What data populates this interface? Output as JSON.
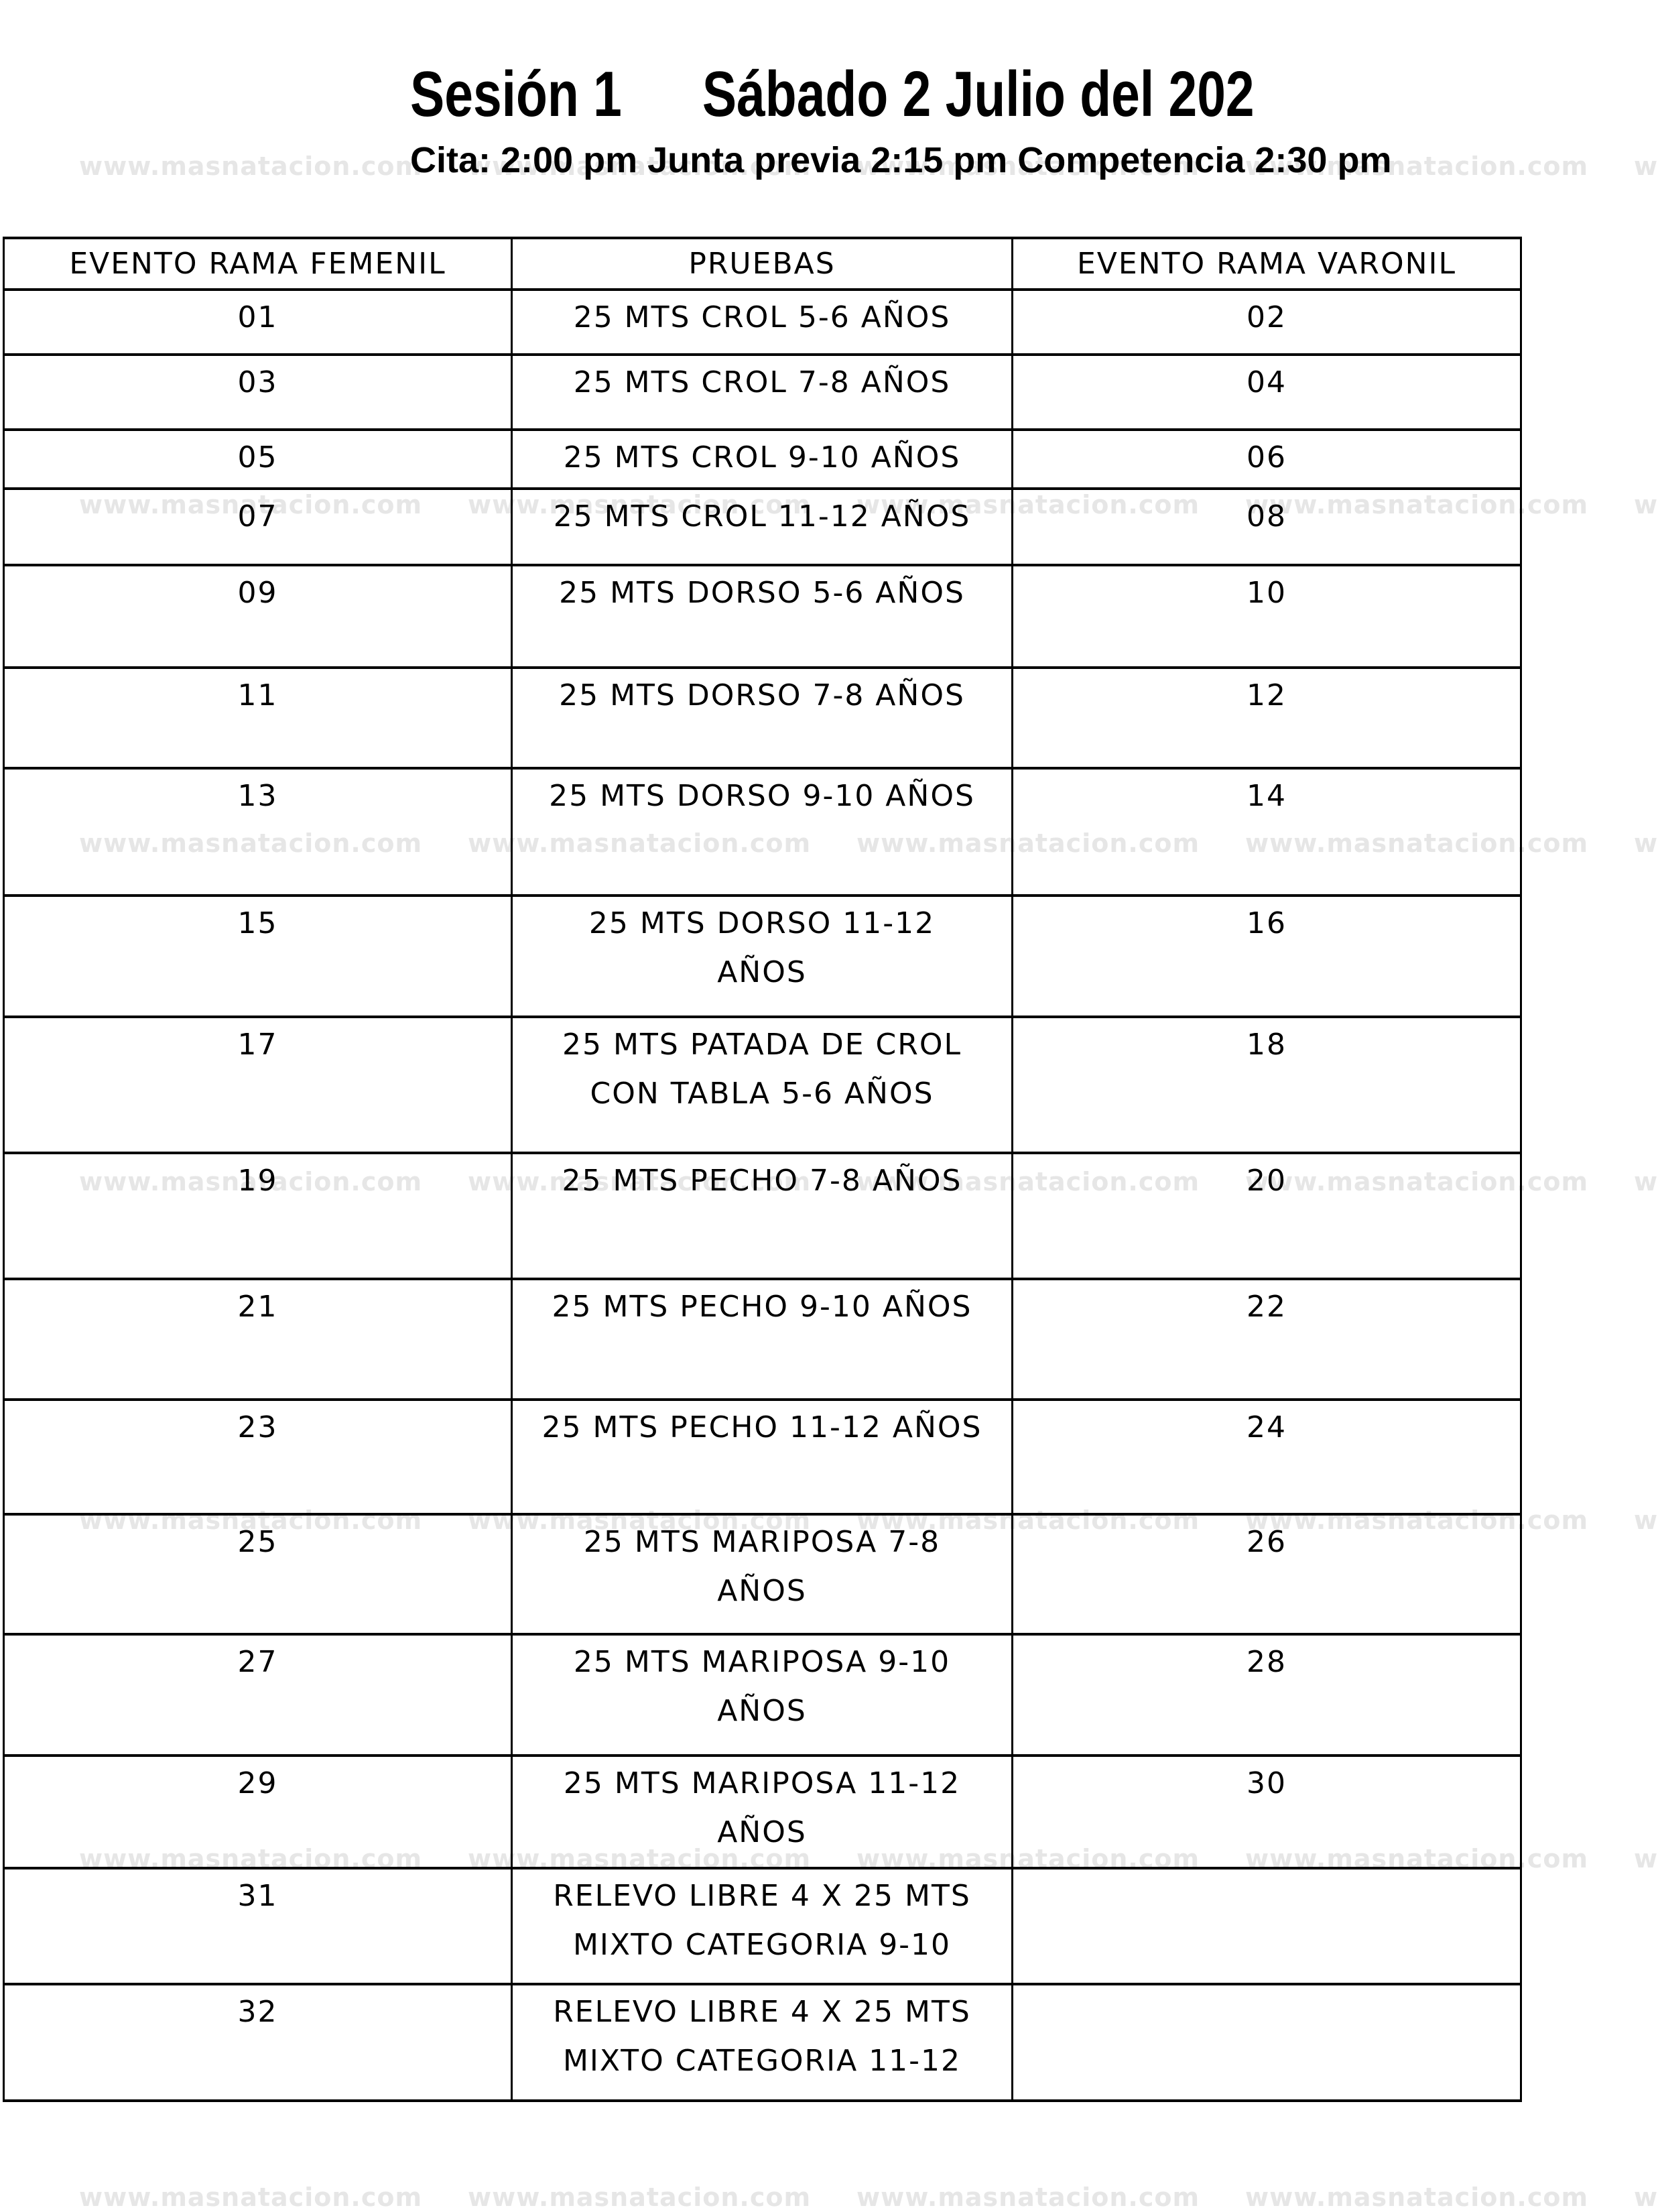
{
  "header": {
    "session": "Sesión 1",
    "date": "Sábado 2 Julio del 202",
    "schedule": "Cita: 2:00 pm Junta previa 2:15 pm Competencia 2:30 pm"
  },
  "watermark": {
    "text": "www.masnatacion.com"
  },
  "table": {
    "columns": [
      "EVENTO RAMA FEMENIL",
      "PRUEBAS",
      "EVENTO RAMA VARONIL"
    ],
    "rows": [
      {
        "femenil": "01",
        "prueba": "25 MTS CROL 5-6 AÑOS",
        "varonil": "02"
      },
      {
        "femenil": "03",
        "prueba": "25 MTS CROL 7-8 AÑOS",
        "varonil": "04"
      },
      {
        "femenil": "05",
        "prueba": "25 MTS CROL 9-10 AÑOS",
        "varonil": "06"
      },
      {
        "femenil": "07",
        "prueba": "25 MTS CROL 11-12 AÑOS",
        "varonil": "08"
      },
      {
        "femenil": "09",
        "prueba": "25 MTS DORSO 5-6 AÑOS",
        "varonil": "10"
      },
      {
        "femenil": "11",
        "prueba": "25 MTS DORSO 7-8 AÑOS",
        "varonil": "12"
      },
      {
        "femenil": "13",
        "prueba": "25 MTS DORSO 9-10 AÑOS",
        "varonil": "14"
      },
      {
        "femenil": "15",
        "prueba": "25 MTS DORSO 11-12\nAÑOS",
        "varonil": "16"
      },
      {
        "femenil": "17",
        "prueba": "25 MTS PATADA DE CROL\nCON TABLA 5-6 AÑOS",
        "varonil": "18"
      },
      {
        "femenil": "19",
        "prueba": "25 MTS PECHO 7-8 AÑOS",
        "varonil": "20"
      },
      {
        "femenil": "21",
        "prueba": "25 MTS PECHO 9-10 AÑOS",
        "varonil": "22"
      },
      {
        "femenil": "23",
        "prueba": "25 MTS PECHO 11-12 AÑOS",
        "varonil": "24"
      },
      {
        "femenil": "25",
        "prueba": "25 MTS MARIPOSA 7-8\nAÑOS",
        "varonil": "26"
      },
      {
        "femenil": "27",
        "prueba": "25 MTS MARIPOSA 9-10\nAÑOS",
        "varonil": "28"
      },
      {
        "femenil": "29",
        "prueba": "25 MTS MARIPOSA 11-12\nAÑOS",
        "varonil": "30"
      },
      {
        "femenil": "31",
        "prueba": "RELEVO LIBRE 4 X 25 MTS\nMIXTO CATEGORIA 9-10",
        "varonil": ""
      },
      {
        "femenil": "32",
        "prueba": "RELEVO LIBRE 4 X 25 MTS\nMIXTO CATEGORIA 11-12",
        "varonil": ""
      }
    ]
  }
}
